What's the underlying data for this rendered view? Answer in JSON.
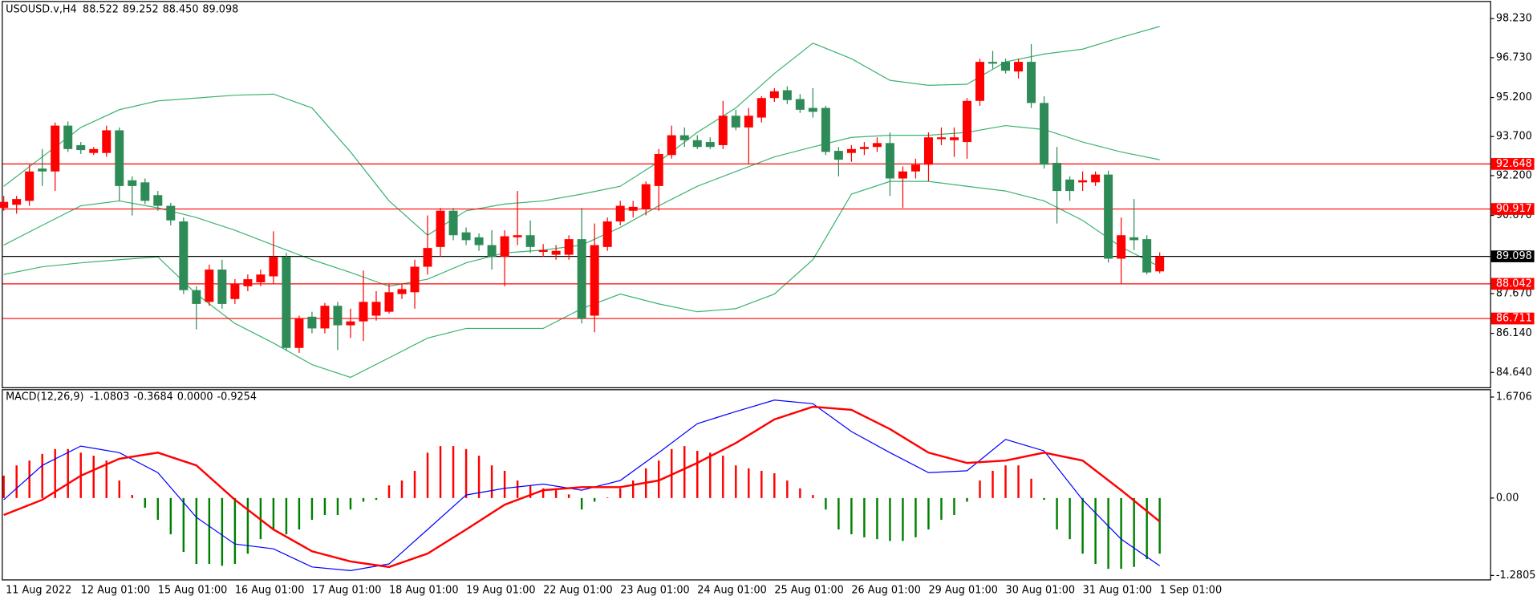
{
  "chart_data": [
    {
      "type": "candlestick",
      "title": "USOUSD.v,H4",
      "info_labels": [
        "88.522",
        "89.252",
        "88.450",
        "89.098"
      ],
      "categories": [
        "11 Aug 2022",
        null,
        null,
        null,
        null,
        null,
        "12 Aug 01:00",
        null,
        null,
        null,
        null,
        null,
        "15 Aug 01:00",
        null,
        null,
        null,
        null,
        null,
        "16 Aug 01:00",
        null,
        null,
        null,
        null,
        null,
        "17 Aug 01:00",
        null,
        null,
        null,
        null,
        null,
        "18 Aug 01:00",
        null,
        null,
        null,
        null,
        null,
        "19 Aug 01:00",
        null,
        null,
        null,
        null,
        null,
        "22 Aug 01:00",
        null,
        null,
        null,
        null,
        null,
        "23 Aug 01:00",
        null,
        null,
        null,
        null,
        null,
        "24 Aug 01:00",
        null,
        null,
        null,
        null,
        null,
        "25 Aug 01:00",
        null,
        null,
        null,
        null,
        null,
        "26 Aug 01:00",
        null,
        null,
        null,
        null,
        null,
        "29 Aug 01:00",
        null,
        null,
        null,
        null,
        null,
        "30 Aug 01:00",
        null,
        null,
        null,
        null,
        null,
        "31 Aug 01:00",
        null,
        null,
        null,
        null,
        null,
        "1 Sep 01:00"
      ],
      "open": [
        90.96,
        91.08,
        91.23,
        92.47,
        92.36,
        94.12,
        93.37,
        93.07,
        93.07,
        93.94,
        92.02,
        91.94,
        91.45,
        91.04,
        90.44,
        87.8,
        87.35,
        88.59,
        87.46,
        87.95,
        88.1,
        88.33,
        89.08,
        85.58,
        86.78,
        86.33,
        87.2,
        86.45,
        86.6,
        86.82,
        86.97,
        87.65,
        87.72,
        88.7,
        89.46,
        90.85,
        90.02,
        89.83,
        89.53,
        89.08,
        89.83,
        89.91,
        89.27,
        89.16,
        89.16,
        89.76,
        86.82,
        89.46,
        90.44,
        90.85,
        90.93,
        91.8,
        92.99,
        93.75,
        93.56,
        93.49,
        93.37,
        94.5,
        94.05,
        94.43,
        95.18,
        95.48,
        95.14,
        94.8,
        94.8,
        93.15,
        93.07,
        93.22,
        93.3,
        93.45,
        92.09,
        92.36,
        92.62,
        93.6,
        93.56,
        93.49,
        95.07,
        96.57,
        96.57,
        96.2,
        96.57,
        94.99,
        92.69,
        92.05,
        91.94,
        91.94,
        92.24,
        89.01,
        89.83,
        89.76,
        88.522
      ],
      "high": [
        91.42,
        91.42,
        92.62,
        93.22,
        94.24,
        94.28,
        93.49,
        93.3,
        94.12,
        94.05,
        92.17,
        92.09,
        91.61,
        91.15,
        90.59,
        87.95,
        88.78,
        88.97,
        88.22,
        88.4,
        88.59,
        90.06,
        89.23,
        86.82,
        86.97,
        87.31,
        87.35,
        87.09,
        88.55,
        87.76,
        88.03,
        88.03,
        88.97,
        90.67,
        90.96,
        90.96,
        90.21,
        89.98,
        90.1,
        90.1,
        91.61,
        90.48,
        89.57,
        89.53,
        89.91,
        90.96,
        90.36,
        90.59,
        91.23,
        91.23,
        91.98,
        93.22,
        94.12,
        94.05,
        93.75,
        93.67,
        95.07,
        94.73,
        94.8,
        95.25,
        95.56,
        95.63,
        95.33,
        95.56,
        94.88,
        93.3,
        93.37,
        93.49,
        93.67,
        93.86,
        92.55,
        92.85,
        93.86,
        94.05,
        94.05,
        95.18,
        96.69,
        96.99,
        96.69,
        96.69,
        97.25,
        95.25,
        93.3,
        92.17,
        92.36,
        92.36,
        92.39,
        90.59,
        91.3,
        89.91,
        89.252
      ],
      "low": [
        90.85,
        90.74,
        91.04,
        91.8,
        91.61,
        93.11,
        93.03,
        92.99,
        92.92,
        91.23,
        90.67,
        91.11,
        90.85,
        90.29,
        87.65,
        86.29,
        87.2,
        87.09,
        87.27,
        87.76,
        87.95,
        88.03,
        85.47,
        85.39,
        86.14,
        86.14,
        85.5,
        85.96,
        85.85,
        86.63,
        86.9,
        87.46,
        87.09,
        88.4,
        89.08,
        89.72,
        89.53,
        89.31,
        88.59,
        87.95,
        89.53,
        89.23,
        89.08,
        88.97,
        88.97,
        86.52,
        86.18,
        89.31,
        90.29,
        90.59,
        90.67,
        90.85,
        92.85,
        93.3,
        93.22,
        93.22,
        93.22,
        93.94,
        92.66,
        94.24,
        95.03,
        94.95,
        94.61,
        94.43,
        92.99,
        92.17,
        92.73,
        92.99,
        93.11,
        91.42,
        90.96,
        92.09,
        91.98,
        93.37,
        92.92,
        92.85,
        94.88,
        96.31,
        96.12,
        95.93,
        94.8,
        92.47,
        90.36,
        91.23,
        91.61,
        91.8,
        88.86,
        88.03,
        89.34,
        88.4,
        88.45
      ],
      "close": [
        91.19,
        91.3,
        92.36,
        92.36,
        94.12,
        93.22,
        93.18,
        93.22,
        93.94,
        91.8,
        91.8,
        91.23,
        91.04,
        90.48,
        87.8,
        87.27,
        88.59,
        87.27,
        88.03,
        88.22,
        88.4,
        89.08,
        85.58,
        86.71,
        86.33,
        87.2,
        86.45,
        86.6,
        87.35,
        87.35,
        87.72,
        87.84,
        88.7,
        89.42,
        90.85,
        89.91,
        89.72,
        89.53,
        89.08,
        89.87,
        89.91,
        89.46,
        89.34,
        89.31,
        89.76,
        86.71,
        89.53,
        90.44,
        91.04,
        91.0,
        91.87,
        93.03,
        93.75,
        93.56,
        93.3,
        93.3,
        94.5,
        94.05,
        94.5,
        95.18,
        95.44,
        95.1,
        94.73,
        94.65,
        93.11,
        92.81,
        93.22,
        93.3,
        93.45,
        92.09,
        92.36,
        92.62,
        93.67,
        93.67,
        93.67,
        95.07,
        96.57,
        96.5,
        96.23,
        96.57,
        94.99,
        92.62,
        91.61,
        91.61,
        92.02,
        92.24,
        89.01,
        89.91,
        89.72,
        88.48,
        89.098
      ],
      "up_color": "#ff0000",
      "down_color": "#2e8b57",
      "bands": [
        {
          "color": "#3cb371",
          "x": [
            0,
            3,
            6,
            9,
            12,
            15,
            18,
            21,
            24,
            27,
            30,
            33,
            36,
            39,
            42,
            45,
            48,
            51,
            54,
            57,
            60,
            63,
            66,
            69,
            72,
            75,
            78,
            81,
            84,
            87,
            90
          ],
          "values": [
            91.79,
            92.92,
            94.05,
            94.73,
            95.07,
            95.18,
            95.29,
            95.33,
            94.8,
            93.11,
            91.23,
            89.91,
            90.85,
            91.11,
            91.23,
            91.49,
            91.79,
            92.73,
            93.86,
            94.8,
            96.12,
            97.29,
            96.69,
            95.86,
            95.67,
            95.71,
            96.57,
            96.87,
            97.06,
            97.51,
            97.93
          ]
        },
        {
          "color": "#3cb371",
          "x": [
            0,
            3,
            6,
            9,
            12,
            15,
            18,
            21,
            24,
            27,
            30,
            33,
            36,
            39,
            42,
            45,
            48,
            51,
            54,
            57,
            60,
            63,
            66,
            69,
            72,
            75,
            78,
            81,
            84,
            87,
            90
          ],
          "values": [
            89.53,
            90.29,
            91.04,
            91.23,
            90.96,
            90.59,
            90.1,
            89.53,
            88.97,
            88.48,
            87.95,
            88.22,
            88.85,
            89.23,
            89.34,
            89.53,
            90.21,
            91.04,
            91.79,
            92.36,
            92.92,
            93.3,
            93.67,
            93.75,
            93.75,
            93.86,
            94.12,
            93.97,
            93.49,
            93.11,
            92.81
          ]
        },
        {
          "color": "#3cb371",
          "x": [
            0,
            3,
            6,
            9,
            12,
            15,
            18,
            21,
            24,
            27,
            30,
            33,
            36,
            39,
            42,
            45,
            48,
            51,
            54,
            57,
            60,
            63,
            66,
            69,
            72,
            75,
            78,
            81,
            84,
            87,
            90
          ],
          "values": [
            88.4,
            88.7,
            88.85,
            88.97,
            89.08,
            87.65,
            86.52,
            85.77,
            84.94,
            84.45,
            85.2,
            85.96,
            86.33,
            86.33,
            86.33,
            87.09,
            87.65,
            87.27,
            86.97,
            87.09,
            87.65,
            88.97,
            91.49,
            91.98,
            91.98,
            91.79,
            91.61,
            91.23,
            90.48,
            89.46,
            88.7
          ]
        }
      ],
      "levels": [
        {
          "value": 92.648,
          "color": "#ff0000"
        },
        {
          "value": 90.917,
          "color": "#ff0000"
        },
        {
          "value": 88.042,
          "color": "#ff0000"
        },
        {
          "value": 86.711,
          "color": "#ff0000"
        },
        {
          "value": 89.098,
          "color": "#000000"
        }
      ],
      "ylim": [
        84.07,
        98.87
      ],
      "yticks": [
        {
          "value": 98.23,
          "label": "98.230"
        },
        {
          "value": 96.73,
          "label": "96.730"
        },
        {
          "value": 95.2,
          "label": "95.200"
        },
        {
          "value": 93.7,
          "label": "93.700"
        },
        {
          "value": 92.2,
          "label": "92.200"
        },
        {
          "value": 90.67,
          "label": "90.670"
        },
        {
          "value": 87.67,
          "label": "87.670"
        },
        {
          "value": 86.14,
          "label": "86.140"
        },
        {
          "value": 84.64,
          "label": "84.640"
        }
      ],
      "grid": false
    },
    {
      "type": "macd",
      "title": "MACD(12,26,9)",
      "info_labels": [
        "-1.0803",
        "-0.3684",
        "0.0000",
        "-0.9254"
      ],
      "histogram": [
        0.37,
        0.54,
        0.62,
        0.73,
        0.81,
        0.81,
        0.75,
        0.7,
        0.62,
        0.29,
        0.05,
        -0.16,
        -0.36,
        -0.6,
        -0.89,
        -1.09,
        -1.09,
        -1.12,
        -1.09,
        -0.92,
        -0.68,
        -0.52,
        -0.6,
        -0.52,
        -0.36,
        -0.28,
        -0.28,
        -0.19,
        -0.06,
        -0.03,
        0.21,
        0.29,
        0.45,
        0.75,
        0.86,
        0.86,
        0.81,
        0.7,
        0.54,
        0.45,
        0.29,
        0.21,
        0.16,
        0.13,
        0.06,
        -0.19,
        -0.06,
        0.01,
        0.16,
        0.29,
        0.49,
        0.62,
        0.81,
        0.86,
        0.78,
        0.75,
        0.7,
        0.54,
        0.49,
        0.45,
        0.41,
        0.29,
        0.16,
        0.05,
        -0.19,
        -0.52,
        -0.6,
        -0.65,
        -0.68,
        -0.71,
        -0.71,
        -0.65,
        -0.52,
        -0.36,
        -0.28,
        -0.06,
        0.29,
        0.45,
        0.54,
        0.54,
        0.32,
        -0.03,
        -0.52,
        -0.68,
        -0.92,
        -1.09,
        -1.17,
        -1.17,
        -1.14,
        -1.01,
        -0.92
      ],
      "up_color": "#ff0000",
      "down_color": "#008000",
      "series": [
        {
          "color": "#0000ff",
          "x": [
            0,
            3,
            6,
            9,
            12,
            15,
            18,
            21,
            24,
            27,
            30,
            33,
            36,
            39,
            42,
            45,
            48,
            51,
            54,
            57,
            60,
            63,
            66,
            69,
            72,
            75,
            78,
            81,
            84,
            87,
            90
          ],
          "values": [
            -0.03,
            0.54,
            0.86,
            0.75,
            0.42,
            -0.32,
            -0.76,
            -0.84,
            -1.14,
            -1.2,
            -1.09,
            -0.52,
            0.05,
            0.16,
            0.23,
            0.13,
            0.29,
            0.75,
            1.23,
            1.43,
            1.62,
            1.56,
            1.1,
            0.75,
            0.42,
            0.45,
            0.97,
            0.78,
            -0.03,
            -0.68,
            -1.12
          ]
        },
        {
          "color": "#ff0000",
          "x": [
            0,
            3,
            6,
            9,
            12,
            15,
            18,
            21,
            24,
            27,
            30,
            33,
            36,
            39,
            42,
            45,
            48,
            51,
            54,
            57,
            60,
            63,
            66,
            69,
            72,
            75,
            78,
            81,
            84,
            87,
            90
          ],
          "values": [
            -0.28,
            -0.03,
            0.37,
            0.65,
            0.75,
            0.54,
            -0.03,
            -0.52,
            -0.88,
            -1.05,
            -1.14,
            -0.92,
            -0.52,
            -0.11,
            0.13,
            0.18,
            0.18,
            0.29,
            0.58,
            0.91,
            1.3,
            1.51,
            1.46,
            1.14,
            0.75,
            0.58,
            0.62,
            0.75,
            0.62,
            0.13,
            -0.39
          ]
        }
      ],
      "ylim": [
        -1.346,
        1.8
      ],
      "yticks": [
        1.6706,
        {
          "value": 0,
          "label": "0.00"
        },
        -1.2805
      ]
    }
  ]
}
